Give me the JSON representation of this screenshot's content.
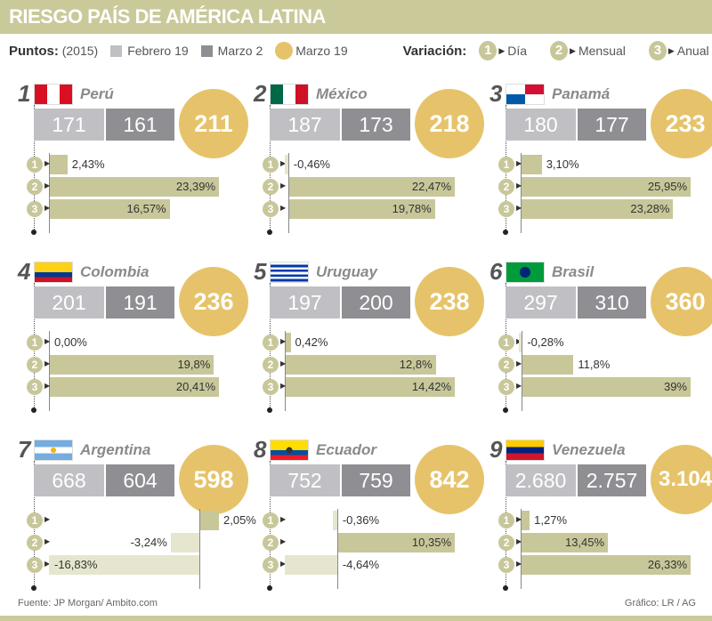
{
  "title": "RIESGO PAÍS DE AMÉRICA LATINA",
  "legend": {
    "puntos_label": "Puntos:",
    "year": "(2015)",
    "series": [
      "Febrero 19",
      "Marzo 2",
      "Marzo 19"
    ],
    "variacion_label": "Variación:",
    "variaciones": [
      {
        "n": "1",
        "label": "Día"
      },
      {
        "n": "2",
        "label": "Mensual"
      },
      {
        "n": "3",
        "label": "Anual"
      }
    ]
  },
  "colors": {
    "febrero": "#c0c0c4",
    "marzo2": "#8e8e93",
    "marzo19": "#e6c36a",
    "bar": "#c8c79a",
    "bar_negative": "#e6e6cf",
    "header": "#c9c99a"
  },
  "chart_data": {
    "type": "bar",
    "countries": [
      {
        "rank": "1",
        "name": "Perú",
        "flag": "peru",
        "puntos": [
          "171",
          "161",
          "211"
        ],
        "variacion": [
          2.43,
          23.39,
          16.57
        ],
        "labels": [
          "2,43%",
          "23,39%",
          "16,57%"
        ]
      },
      {
        "rank": "2",
        "name": "México",
        "flag": "mexico",
        "puntos": [
          "187",
          "173",
          "218"
        ],
        "variacion": [
          -0.46,
          22.47,
          19.78
        ],
        "labels": [
          "-0,46%",
          "22,47%",
          "19,78%"
        ]
      },
      {
        "rank": "3",
        "name": "Panamá",
        "flag": "panama",
        "puntos": [
          "180",
          "177",
          "233"
        ],
        "variacion": [
          3.1,
          25.95,
          23.28
        ],
        "labels": [
          "3,10%",
          "25,95%",
          "23,28%"
        ]
      },
      {
        "rank": "4",
        "name": "Colombia",
        "flag": "colombia",
        "puntos": [
          "201",
          "191",
          "236"
        ],
        "variacion": [
          0.0,
          19.8,
          20.41
        ],
        "labels": [
          "0,00%",
          "19,8%",
          "20,41%"
        ]
      },
      {
        "rank": "5",
        "name": "Uruguay",
        "flag": "uruguay",
        "puntos": [
          "197",
          "200",
          "238"
        ],
        "variacion": [
          0.42,
          12.8,
          14.42
        ],
        "labels": [
          "0,42%",
          "12,8%",
          "14,42%"
        ]
      },
      {
        "rank": "6",
        "name": "Brasil",
        "flag": "brasil",
        "puntos": [
          "297",
          "310",
          "360"
        ],
        "variacion": [
          -0.28,
          11.8,
          39
        ],
        "labels": [
          "-0,28%",
          "11,8%",
          "39%"
        ]
      },
      {
        "rank": "7",
        "name": "Argentina",
        "flag": "argentina",
        "puntos": [
          "668",
          "604",
          "598"
        ],
        "variacion": [
          2.05,
          -3.24,
          -16.83
        ],
        "labels": [
          "2,05%",
          "-3,24%",
          "-16,83%"
        ]
      },
      {
        "rank": "8",
        "name": "Ecuador",
        "flag": "ecuador",
        "puntos": [
          "752",
          "759",
          "842"
        ],
        "variacion": [
          -0.36,
          10.35,
          -4.64
        ],
        "labels": [
          "-0,36%",
          "10,35%",
          "-4,64%"
        ]
      },
      {
        "rank": "9",
        "name": "Venezuela",
        "flag": "venezuela",
        "puntos": [
          "2.680",
          "2.757",
          "3.104"
        ],
        "variacion": [
          1.27,
          13.45,
          26.33
        ],
        "labels": [
          "1,27%",
          "13,45%",
          "26,33%"
        ]
      }
    ]
  },
  "footer": {
    "source": "Fuente: JP Morgan/ Ambito.com",
    "credit": "Gráfico: LR / AG"
  }
}
